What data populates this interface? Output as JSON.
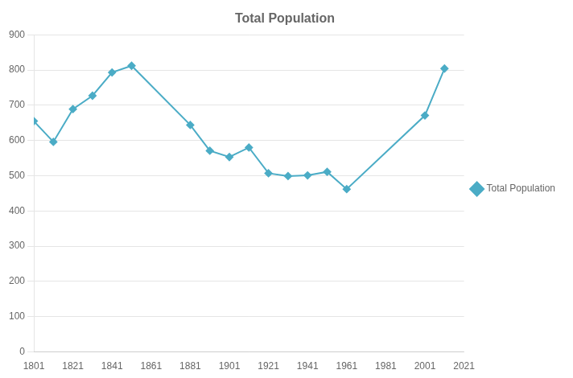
{
  "chart_data": {
    "type": "line",
    "title": "Total Population",
    "x": [
      1801,
      1811,
      1821,
      1831,
      1841,
      1851,
      1881,
      1891,
      1901,
      1911,
      1921,
      1931,
      1941,
      1951,
      1961,
      2001,
      2011
    ],
    "series": [
      {
        "name": "Total Population",
        "color": "#4BACC6",
        "marker": "diamond",
        "values": [
          655,
          596,
          689,
          727,
          793,
          812,
          644,
          571,
          553,
          580,
          507,
          499,
          501,
          511,
          462,
          671,
          804
        ]
      }
    ],
    "xlim": [
      1801,
      2021
    ],
    "xticks": [
      1801,
      1821,
      1841,
      1861,
      1881,
      1901,
      1921,
      1941,
      1961,
      1981,
      2001,
      2021
    ],
    "ylim": [
      0,
      900
    ],
    "yticks": [
      0,
      100,
      200,
      300,
      400,
      500,
      600,
      700,
      800,
      900
    ],
    "grid": "y",
    "legend": "right"
  }
}
